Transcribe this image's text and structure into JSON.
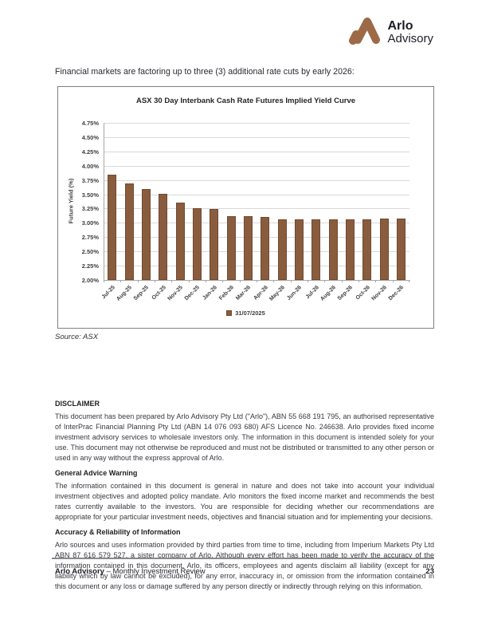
{
  "brand": {
    "name_line1": "Arlo",
    "name_line2": "Advisory",
    "logo_color": "#9C6A46"
  },
  "intro_text": "Financial markets are factoring up to three (3) additional rate cuts by early 2026:",
  "chart_data": {
    "type": "bar",
    "title": "ASX 30 Day Interbank Cash Rate Futures Implied Yield Curve",
    "ylabel": "Future Yield (%)",
    "xlabel": "",
    "categories": [
      "Jul-25",
      "Aug-25",
      "Sep-25",
      "Oct-25",
      "Nov-25",
      "Dec-25",
      "Jan-26",
      "Feb-26",
      "Mar-26",
      "Apr-26",
      "May-26",
      "Jun-26",
      "Jul-26",
      "Aug-26",
      "Sep-26",
      "Oct-26",
      "Nov-26",
      "Dec-26"
    ],
    "series": [
      {
        "name": "31/07/2025",
        "values": [
          3.84,
          3.69,
          3.59,
          3.51,
          3.35,
          3.25,
          3.24,
          3.12,
          3.11,
          3.1,
          3.06,
          3.06,
          3.06,
          3.06,
          3.06,
          3.06,
          3.07,
          3.08
        ]
      }
    ],
    "ylim": [
      2.0,
      4.75
    ],
    "ytick_step": 0.25,
    "ytick_format": "percent",
    "grid": true,
    "legend": [
      "31/07/2025"
    ],
    "legend_position": "bottom",
    "bar_color": "#8A5C3E",
    "gridline_color": "#D9D9D9",
    "axis_color": "#A6A6A6"
  },
  "source_note": "Source: ASX",
  "disclaimer": {
    "heading": "DISCLAIMER",
    "para1": "This document has been prepared by Arlo Advisory Pty Ltd (\"Arlo\"), ABN 55 668 191 795, an authorised representative of InterPrac Financial Planning Pty Ltd (ABN 14 076 093 680) AFS Licence No. 246638. Arlo provides fixed income investment advisory services to wholesale investors only. The information in this document is intended solely for your use. This document may not otherwise be reproduced and must not be distributed or transmitted to any other person or used in any way without the express approval of Arlo.",
    "subheading1": "General Advice Warning",
    "para2": "The information contained in this document is general in nature and does not take into account your individual investment objectives and adopted policy mandate.  Arlo monitors the fixed income market and recommends the best rates currently available to the investors. You are responsible for deciding whether our recommendations are appropriate for your particular investment needs, objectives and financial situation and for implementing your decisions.",
    "subheading2": "Accuracy & Reliability of Information",
    "para3": "Arlo sources and uses information provided by third parties from time to time, including from Imperium Markets Pty Ltd ABN 87 616 579 527, a sister company of Arlo. Although every effort has been made to verify the accuracy of the information contained in this document, Arlo, its officers, employees and agents disclaim all liability (except for any liability which by law cannot be excluded), for any error, inaccuracy in, or omission from the information contained in this document or any loss or damage suffered by any person directly or indirectly through relying on this information."
  },
  "footer": {
    "brand": "Arlo Advisory",
    "suffix": " – Monthly Investment Review",
    "page_number": "23"
  }
}
